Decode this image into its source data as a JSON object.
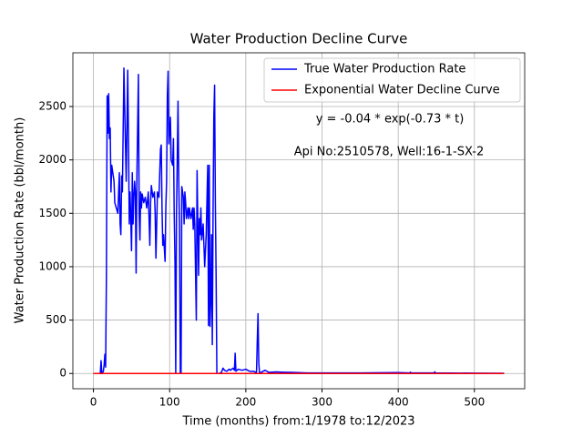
{
  "chart_data": {
    "type": "line",
    "title": "Water Production Decline Curve",
    "xlabel": "Time (months) from:1/1978 to:12/2023",
    "ylabel": "Water Production Rate (bbl/month)",
    "annotations": [
      "y = -0.04 * exp(-0.73 * t)",
      "Api No:2510578, Well:16-1-SX-2"
    ],
    "xlim": [
      -27,
      566
    ],
    "ylim": [
      -143,
      3003
    ],
    "xticks": [
      0,
      100,
      200,
      300,
      400,
      500
    ],
    "yticks": [
      0,
      500,
      1000,
      1500,
      2000,
      2500
    ],
    "grid": true,
    "legend": "upper right",
    "series": [
      {
        "name": "True Water Production Rate",
        "color": "#0000ff",
        "x": [
          0,
          5,
          9,
          10,
          11,
          13,
          14,
          15,
          16,
          17,
          18,
          19,
          20,
          21,
          22,
          23,
          24,
          25,
          27,
          28,
          30,
          32,
          34,
          35,
          36,
          37,
          38,
          40,
          41,
          42,
          43,
          45,
          46,
          47,
          48,
          49,
          50,
          51,
          52,
          53,
          54,
          55,
          56,
          57,
          59,
          60,
          61,
          62,
          63,
          64,
          66,
          68,
          70,
          72,
          74,
          75,
          76,
          78,
          80,
          81,
          82,
          84,
          86,
          88,
          89,
          90,
          91,
          92,
          94,
          95,
          96,
          97,
          98,
          99,
          101,
          102,
          104,
          105,
          106,
          107,
          108,
          109,
          110,
          111,
          112,
          113,
          114,
          115,
          116,
          117,
          118,
          119,
          120,
          121,
          122,
          123,
          124,
          125,
          126,
          128,
          130,
          131,
          132,
          133,
          135,
          136,
          137,
          138,
          139,
          140,
          141,
          142,
          144,
          146,
          148,
          150,
          151,
          152,
          153,
          154,
          155,
          156,
          157,
          158,
          159,
          160,
          161,
          162,
          165,
          168,
          170,
          172,
          175,
          178,
          180,
          183,
          185,
          186,
          187,
          190,
          195,
          200,
          205,
          210,
          214,
          215,
          216,
          217,
          218,
          220,
          225,
          228,
          230,
          240,
          250,
          260,
          280,
          300,
          350,
          400,
          415,
          416,
          417,
          447,
          448,
          449,
          500,
          539
        ],
        "values": [
          0,
          0,
          0,
          120,
          0,
          20,
          80,
          180,
          60,
          900,
          2600,
          2250,
          2620,
          2200,
          2300,
          1700,
          1950,
          1900,
          1800,
          1600,
          1550,
          1500,
          1880,
          1400,
          1300,
          1850,
          1700,
          2860,
          2500,
          2150,
          1800,
          2840,
          2200,
          1400,
          1700,
          1450,
          1150,
          1880,
          1400,
          1650,
          1800,
          1700,
          940,
          1820,
          2800,
          1500,
          1250,
          1700,
          1550,
          1680,
          1600,
          1650,
          1550,
          1700,
          1200,
          1600,
          1760,
          1650,
          1700,
          1500,
          1080,
          1700,
          1650,
          2100,
          2140,
          1550,
          1200,
          1300,
          1050,
          1550,
          1800,
          2600,
          2830,
          2150,
          2400,
          2000,
          1950,
          2200,
          1500,
          1050,
          0,
          1500,
          2000,
          2550,
          1800,
          1350,
          0,
          0,
          1750,
          1700,
          1650,
          1400,
          1700,
          1600,
          1450,
          1500,
          1550,
          1450,
          1550,
          1450,
          1550,
          1350,
          1550,
          1400,
          500,
          1900,
          1400,
          920,
          1450,
          1300,
          1550,
          1250,
          1400,
          1000,
          1300,
          1950,
          450,
          1950,
          440,
          700,
          1300,
          270,
          1500,
          2400,
          2700,
          1600,
          900,
          0,
          0,
          10,
          50,
          30,
          20,
          40,
          30,
          50,
          30,
          190,
          20,
          40,
          30,
          40,
          20,
          20,
          10,
          300,
          560,
          100,
          0,
          10,
          30,
          20,
          10,
          15,
          12,
          10,
          5,
          5,
          5,
          8,
          5,
          12,
          5,
          5,
          15,
          5,
          3,
          2
        ]
      },
      {
        "name": "Exponential Water Decline Curve",
        "color": "#ff0000",
        "x": [
          0,
          539
        ],
        "values": [
          0,
          0
        ]
      }
    ]
  }
}
